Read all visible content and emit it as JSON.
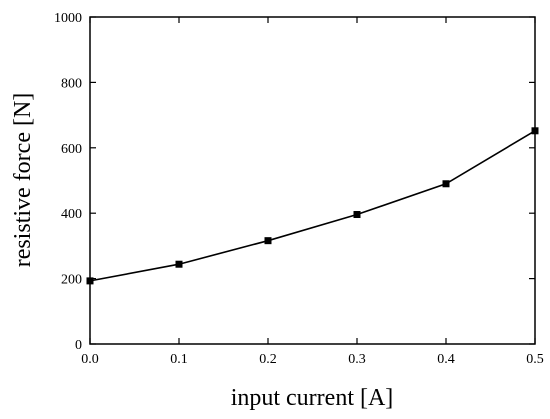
{
  "chart_data": {
    "type": "line",
    "title": "",
    "xlabel": "input current [A]",
    "ylabel": "resistive force [N]",
    "xlim": [
      0,
      0.5
    ],
    "ylim": [
      0,
      1000
    ],
    "x_ticks": [
      "0.0",
      "0.1",
      "0.2",
      "0.3",
      "0.4",
      "0.5"
    ],
    "y_ticks": [
      "0",
      "200",
      "400",
      "600",
      "800",
      "1000"
    ],
    "grid": false,
    "legend": "none",
    "series": [
      {
        "color": "#000000",
        "marker": "square",
        "x": [
          0.0,
          0.1,
          0.2,
          0.3,
          0.4,
          0.5
        ],
        "y": [
          193,
          244,
          316,
          396,
          490,
          652
        ]
      }
    ]
  }
}
